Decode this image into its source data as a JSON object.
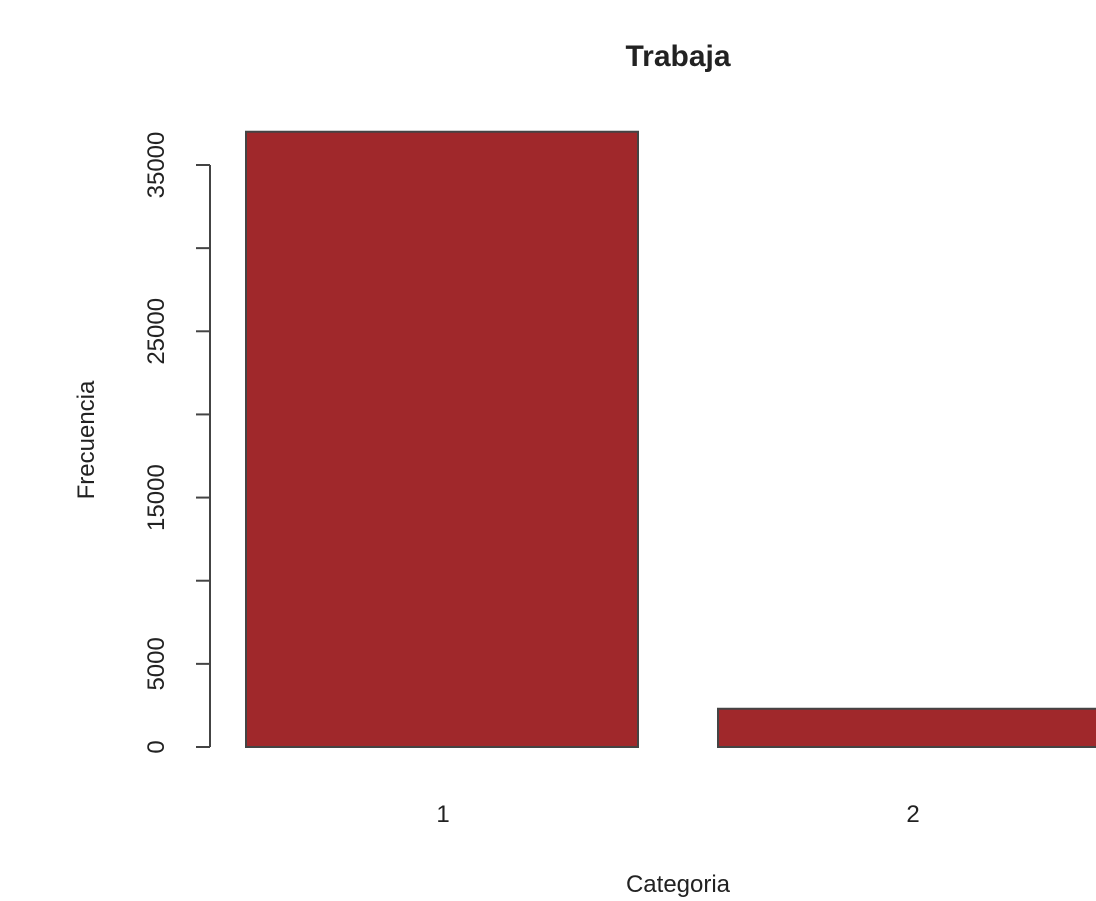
{
  "chart_data": {
    "type": "bar",
    "title": "Trabaja",
    "xlabel": "Categoria",
    "ylabel": "Frecuencia",
    "categories": [
      "1",
      "2"
    ],
    "values": [
      37000,
      2300
    ],
    "ylim": [
      0,
      35000
    ],
    "yticks": [
      0,
      5000,
      10000,
      15000,
      20000,
      25000,
      30000,
      35000
    ],
    "ytick_labels": [
      "0",
      "5000",
      "",
      "15000",
      "",
      "25000",
      "",
      "35000"
    ],
    "bar_color": "#a0282b",
    "grid": false,
    "legend": "none"
  }
}
